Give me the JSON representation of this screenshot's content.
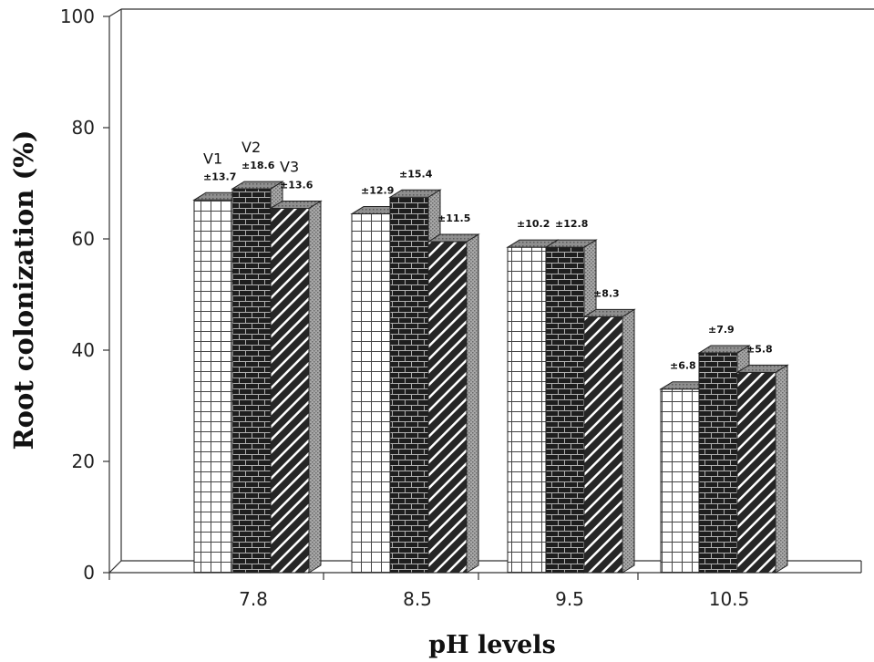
{
  "chart_data": {
    "type": "bar",
    "categories": [
      "7.8",
      "8.5",
      "9.5",
      "10.5"
    ],
    "series": [
      {
        "name": "V1",
        "values": [
          67,
          64.5,
          58.5,
          33
        ],
        "errors": [
          "±13.7",
          "±12.9",
          "±10.2",
          "±6.8"
        ]
      },
      {
        "name": "V2",
        "values": [
          69,
          67.5,
          58.5,
          39.5
        ],
        "errors": [
          "±18.6",
          "±15.4",
          "±12.8",
          "±7.9"
        ]
      },
      {
        "name": "V3",
        "values": [
          65.5,
          59.5,
          46,
          36
        ],
        "errors": [
          "±13.6",
          "±11.5",
          "±8.3",
          "±5.8"
        ]
      }
    ],
    "title": "",
    "xlabel": "pH levels",
    "ylabel": "Root colonization (%)",
    "yticks": [
      "0",
      "20",
      "40",
      "60",
      "80",
      "100"
    ],
    "ylim": [
      0,
      100
    ],
    "grid": false,
    "legend": "none",
    "colors": {
      "background": "#ffffff",
      "wall": "#333333",
      "v1_fill": "#ffffff",
      "v1_line": "#444444",
      "v2_fill": "#1e1e1e",
      "v2_mortar": "#b0b0b0",
      "v3_fill": "#262626",
      "v3_hatch": "#ffffff",
      "bar_top": "#8f8f8f",
      "bar_side": "#a8a8a8"
    }
  }
}
